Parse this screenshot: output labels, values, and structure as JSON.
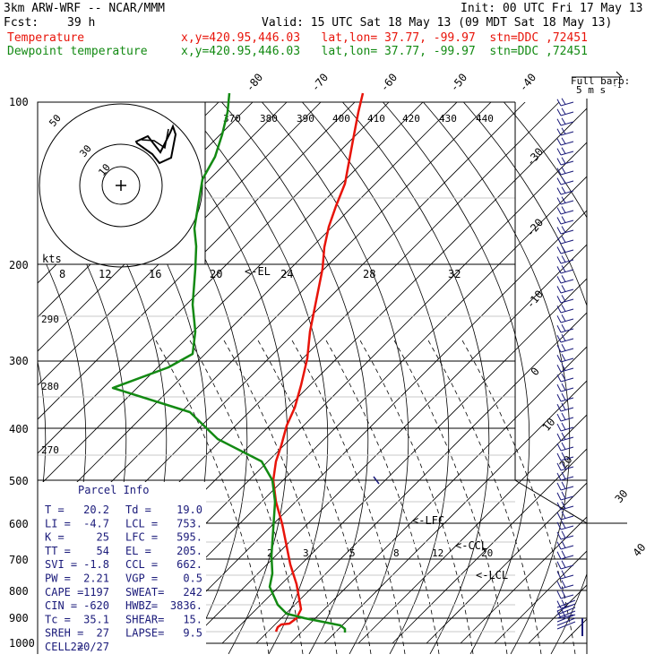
{
  "header": {
    "model": "3km ARW-WRF -- NCAR/MMM",
    "init": "Init: 00 UTC Fri 17 May 13",
    "fcst_label": "Fcst:",
    "fcst_value": "39 h",
    "valid": "Valid: 15 UTC Sat 18 May 13 (09 MDT Sat 18 May 13)",
    "temp_label": "Temperature",
    "temp_info": "x,y=420.95,446.03   lat,lon= 37.77, -99.97  stn=DDC ,72451",
    "dew_label": "Dewpoint temperature",
    "dew_info": "x,y=420.95,446.03   lat,lon= 37.77, -99.97  stn=DDC ,72451",
    "barb_legend_1": "Full barb:",
    "barb_legend_2": "5 m s",
    "barb_legend_sup": "-1"
  },
  "colors": {
    "temperature": "#e8140a",
    "dewpoint": "#138a13",
    "parcel_text": "#1a1a7a"
  },
  "chart_data": {
    "type": "line",
    "pressure_labels": [
      "100",
      "200",
      "300",
      "400",
      "500",
      "600",
      "700",
      "800",
      "900",
      "1000"
    ],
    "top_temp_labels": [
      "-80",
      "-70",
      "-60",
      "-50",
      "-40"
    ],
    "right_temp_labels": [
      "-30",
      "-20",
      "-10",
      "0",
      "10",
      "20",
      "30",
      "40"
    ],
    "theta_labels": [
      "370",
      "380",
      "390",
      "400",
      "410",
      "420",
      "430",
      "440"
    ],
    "theta_labels_left": [
      "290",
      "280",
      "270"
    ],
    "mixing_ratio_labels": [
      "2",
      "3",
      "5",
      "8",
      "12",
      "20"
    ],
    "inset_unit": "kts",
    "inset_speed_labels": [
      "8",
      "12",
      "16",
      "20",
      "24",
      "28",
      "32"
    ],
    "inset_ring_labels": [
      "50",
      "30",
      "10"
    ],
    "level_markers": [
      "<-EL",
      "<-LFC",
      "<-CCL",
      "<-LCL"
    ],
    "series": [
      {
        "name": "Temperature",
        "points": [
          [
            405,
            104
          ],
          [
            400,
            125
          ],
          [
            395,
            151
          ],
          [
            390,
            178
          ],
          [
            385,
            205
          ],
          [
            375,
            230
          ],
          [
            367,
            253
          ],
          [
            362,
            276
          ],
          [
            360,
            300
          ],
          [
            352,
            340
          ],
          [
            346,
            370
          ],
          [
            343,
            400
          ],
          [
            336,
            430
          ],
          [
            329,
            455
          ],
          [
            320,
            475
          ],
          [
            314,
            497
          ],
          [
            308,
            515
          ],
          [
            305,
            536
          ],
          [
            308,
            560
          ],
          [
            315,
            585
          ],
          [
            320,
            610
          ],
          [
            324,
            630
          ],
          [
            331,
            652
          ],
          [
            336,
            680
          ],
          [
            331,
            690
          ],
          [
            323,
            696
          ],
          [
            314,
            697
          ],
          [
            310,
            700
          ],
          [
            308,
            705
          ]
        ]
      },
      {
        "name": "Dewpoint temperature",
        "points": [
          [
            256,
            104
          ],
          [
            254,
            125
          ],
          [
            248,
            150
          ],
          [
            240,
            175
          ],
          [
            226,
            200
          ],
          [
            221,
            230
          ],
          [
            217,
            255
          ],
          [
            219,
            275
          ],
          [
            218,
            300
          ],
          [
            215,
            340
          ],
          [
            218,
            370
          ],
          [
            215,
            395
          ],
          [
            188,
            410
          ],
          [
            126,
            433
          ],
          [
            212,
            460
          ],
          [
            243,
            490
          ],
          [
            292,
            515
          ],
          [
            304,
            536
          ],
          [
            307,
            560
          ],
          [
            305,
            590
          ],
          [
            303,
            620
          ],
          [
            304,
            640
          ],
          [
            301,
            655
          ],
          [
            310,
            675
          ],
          [
            320,
            685
          ],
          [
            340,
            690
          ],
          [
            365,
            695
          ],
          [
            380,
            698
          ],
          [
            385,
            702
          ],
          [
            385,
            706
          ]
        ]
      }
    ]
  },
  "parcel_info": {
    "title": "Parcel Info",
    "rows": [
      [
        "T  =",
        "20.2",
        "Td =",
        "19.0"
      ],
      [
        "LI =",
        "-4.7",
        "LCL =",
        "753."
      ],
      [
        "K  =",
        "25",
        "LFC =",
        "595."
      ],
      [
        "TT =",
        "54",
        "EL  =",
        "205."
      ],
      [
        "SVI =",
        "-1.8",
        "CCL =",
        "662."
      ],
      [
        "PW =",
        "2.21",
        "VGP =",
        "0.5"
      ],
      [
        "CAPE =",
        "1197",
        "SWEAT=",
        "242"
      ],
      [
        "CIN =",
        "-620",
        "HWBZ=",
        "3836."
      ],
      [
        "Tc =",
        "35.1",
        "SHEAR=",
        "15."
      ],
      [
        "SREH =",
        "27",
        "LAPSE=",
        "9.5"
      ],
      [
        "CELL =",
        "220/27",
        "",
        ""
      ]
    ]
  }
}
